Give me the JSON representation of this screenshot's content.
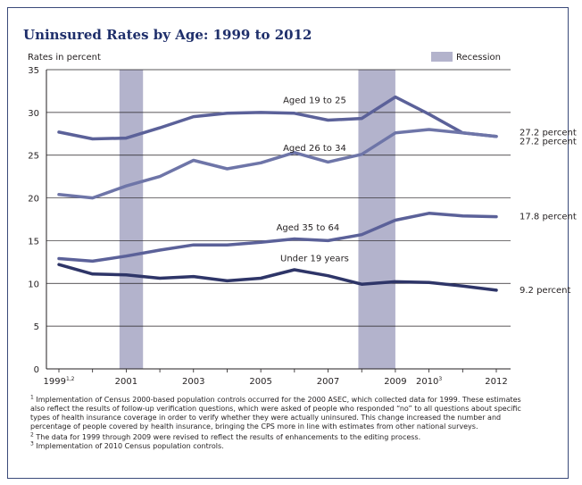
{
  "chart_data": {
    "type": "line",
    "title": "Uninsured Rates by Age: 1999 to 2012",
    "ylabel": "Rates in percent",
    "legend_label": "Recession",
    "ylim": [
      0,
      35
    ],
    "yticks": [
      0,
      5,
      10,
      15,
      20,
      25,
      30,
      35
    ],
    "xlim": [
      1999,
      2012
    ],
    "x": [
      1999,
      2000,
      2001,
      2002,
      2003,
      2004,
      2005,
      2006,
      2007,
      2008,
      2009,
      2010,
      2011,
      2012
    ],
    "xtick_labels": [
      {
        "x": 1999,
        "label": "1999",
        "sup": "1,2"
      },
      {
        "x": 2001,
        "label": "2001",
        "sup": ""
      },
      {
        "x": 2003,
        "label": "2003",
        "sup": ""
      },
      {
        "x": 2005,
        "label": "2005",
        "sup": ""
      },
      {
        "x": 2007,
        "label": "2007",
        "sup": ""
      },
      {
        "x": 2009,
        "label": "2009",
        "sup": ""
      },
      {
        "x": 2010,
        "label": "2010",
        "sup": "3"
      },
      {
        "x": 2012,
        "label": "2012",
        "sup": ""
      }
    ],
    "recessions": [
      [
        2000.8,
        2001.5
      ],
      [
        2007.9,
        2009.0
      ]
    ],
    "series": [
      {
        "name": "Aged 19 to 25",
        "color": "#5b6199",
        "values": [
          27.7,
          26.9,
          27.0,
          28.2,
          29.5,
          29.9,
          30.0,
          29.9,
          29.1,
          29.3,
          31.8,
          29.8,
          27.6,
          27.2
        ],
        "label_at": [
          2006.6,
          31.1
        ],
        "end_label": "27.2 percent",
        "end_label_dy": -4
      },
      {
        "name": "Aged 26 to 34",
        "color": "#6e75a8",
        "values": [
          20.4,
          20.0,
          21.4,
          22.5,
          24.4,
          23.4,
          24.1,
          25.3,
          24.2,
          25.1,
          27.6,
          28.0,
          27.6,
          27.2
        ],
        "label_at": [
          2006.6,
          25.5
        ],
        "end_label": "27.2 percent",
        "end_label_dy": 6
      },
      {
        "name": "Aged 35 to 64",
        "color": "#5b6199",
        "values": [
          12.9,
          12.6,
          13.2,
          13.9,
          14.5,
          14.5,
          14.8,
          15.2,
          15.0,
          15.7,
          17.4,
          18.2,
          17.9,
          17.8
        ],
        "label_at": [
          2006.4,
          16.2
        ],
        "end_label": "17.8 percent",
        "end_label_dy": 0
      },
      {
        "name": "Under 19 years",
        "color": "#2e3568",
        "values": [
          12.2,
          11.1,
          11.0,
          10.6,
          10.8,
          10.3,
          10.6,
          11.6,
          10.9,
          9.9,
          10.2,
          10.1,
          9.7,
          9.2
        ],
        "label_at": [
          2006.6,
          12.6
        ],
        "end_label": "9.2 percent",
        "end_label_dy": 0
      }
    ]
  },
  "footnotes": [
    {
      "sup": "1",
      "text": "Implementation of Census 2000-based population controls occurred for the 2000 ASEC, which collected data for 1999. These estimates also reflect the results of follow-up verification questions, which were asked of people who responded “no” to all questions about specific types of health insurance coverage in order to verify whether they were actually uninsured.  This change increased the number and percentage of people covered by health insurance, bringing the CPS more in line with estimates from other national surveys."
    },
    {
      "sup": "2",
      "text": "The data for 1999 through 2009 were revised to reflect the results of enhancements to the editing process."
    },
    {
      "sup": "3",
      "text": "Implementation of 2010 Census population controls."
    }
  ]
}
